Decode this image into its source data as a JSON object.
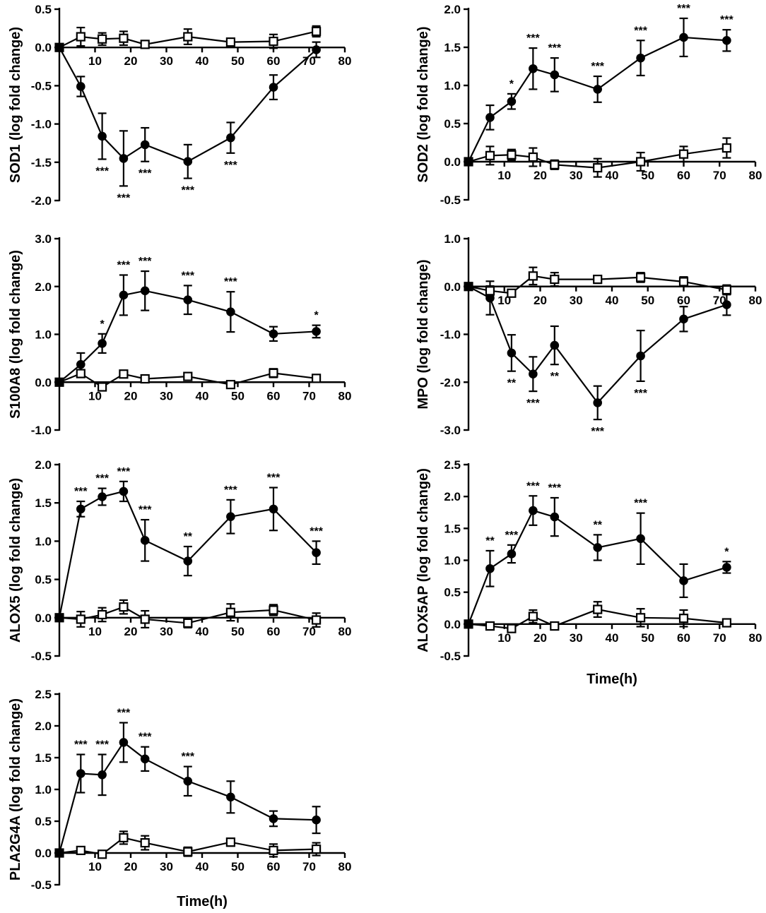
{
  "chart_data": [
    {
      "type": "line",
      "name": "SOD1",
      "ylabel": "SOD1 (log fold change)",
      "xlabel": "",
      "xlim": [
        0,
        80
      ],
      "ylim": [
        -2.0,
        0.5
      ],
      "xticks": [
        10,
        20,
        30,
        40,
        50,
        60,
        70,
        80
      ],
      "yticks": [
        0.5,
        0.0,
        -0.5,
        -1.0,
        -1.5,
        -2.0
      ],
      "ytick_labels": [
        "0.5",
        "0.0",
        "-0.5",
        "-1.0",
        "-1.5",
        "-2.0"
      ],
      "series": [
        {
          "name": "filled",
          "marker": "filled-circle",
          "x": [
            0,
            6,
            12,
            18,
            24,
            36,
            48,
            60,
            72
          ],
          "y": [
            0.0,
            -0.51,
            -1.16,
            -1.45,
            -1.27,
            -1.49,
            -1.18,
            -0.52,
            -0.03
          ],
          "err": [
            0,
            0.13,
            0.3,
            0.36,
            0.22,
            0.22,
            0.2,
            0.16,
            0.1
          ],
          "sig": [
            "",
            "",
            "***",
            "***",
            "***",
            "***",
            "***",
            "",
            ""
          ]
        },
        {
          "name": "open",
          "marker": "open-square",
          "x": [
            0,
            6,
            12,
            18,
            24,
            36,
            48,
            60,
            72
          ],
          "y": [
            0.0,
            0.14,
            0.11,
            0.12,
            0.04,
            0.14,
            0.07,
            0.08,
            0.21
          ],
          "err": [
            0,
            0.12,
            0.08,
            0.09,
            0.03,
            0.1,
            0.03,
            0.09,
            0.07
          ],
          "sig": []
        }
      ]
    },
    {
      "type": "line",
      "name": "SOD2",
      "ylabel": "SOD2 (log fold change)",
      "xlabel": "",
      "xlim": [
        0,
        80
      ],
      "ylim": [
        -0.5,
        2.0
      ],
      "xticks": [
        10,
        20,
        30,
        40,
        50,
        60,
        70,
        80
      ],
      "yticks": [
        2.0,
        1.5,
        1.0,
        0.5,
        0.0,
        -0.5
      ],
      "ytick_labels": [
        "2.0",
        "1.5",
        "1.0",
        "0.5",
        "0.0",
        "-0.5"
      ],
      "series": [
        {
          "name": "filled",
          "marker": "filled-circle",
          "x": [
            0,
            6,
            12,
            18,
            24,
            36,
            48,
            60,
            72
          ],
          "y": [
            0.0,
            0.58,
            0.79,
            1.22,
            1.14,
            0.95,
            1.36,
            1.63,
            1.59
          ],
          "err": [
            0,
            0.16,
            0.1,
            0.27,
            0.22,
            0.17,
            0.23,
            0.25,
            0.14
          ],
          "sig": [
            "",
            "",
            "*",
            "***",
            "***",
            "***",
            "***",
            "***",
            "***"
          ]
        },
        {
          "name": "open",
          "marker": "open-square",
          "x": [
            0,
            6,
            12,
            18,
            24,
            36,
            48,
            60,
            72
          ],
          "y": [
            0.0,
            0.08,
            0.09,
            0.06,
            -0.04,
            -0.08,
            0.0,
            0.1,
            0.18
          ],
          "err": [
            0,
            0.12,
            0.07,
            0.12,
            0.06,
            0.12,
            0.12,
            0.1,
            0.13
          ],
          "sig": []
        }
      ]
    },
    {
      "type": "line",
      "name": "S100A8",
      "ylabel": "S100A8 (log fold change)",
      "xlabel": "",
      "xlim": [
        0,
        80
      ],
      "ylim": [
        -1.0,
        3.0
      ],
      "xticks": [
        10,
        20,
        30,
        40,
        50,
        60,
        70,
        80
      ],
      "yticks": [
        3.0,
        2.0,
        1.0,
        0.0,
        -1.0
      ],
      "ytick_labels": [
        "3.0",
        "2.0",
        "1.0",
        "0.0",
        "-1.0"
      ],
      "series": [
        {
          "name": "filled",
          "marker": "filled-circle",
          "x": [
            0,
            6,
            12,
            18,
            24,
            36,
            48,
            60,
            72
          ],
          "y": [
            0.0,
            0.37,
            0.81,
            1.82,
            1.91,
            1.72,
            1.47,
            1.01,
            1.06
          ],
          "err": [
            0,
            0.24,
            0.2,
            0.42,
            0.41,
            0.3,
            0.42,
            0.15,
            0.13
          ],
          "sig": [
            "",
            "",
            "*",
            "***",
            "***",
            "***",
            "***",
            "",
            "*"
          ]
        },
        {
          "name": "open",
          "marker": "open-square",
          "x": [
            0,
            6,
            12,
            18,
            24,
            36,
            48,
            60,
            72
          ],
          "y": [
            0.0,
            0.18,
            -0.1,
            0.17,
            0.07,
            0.12,
            -0.05,
            0.19,
            0.08
          ],
          "err": [
            0,
            0.08,
            0.05,
            0.06,
            0.04,
            0.05,
            0.04,
            0.09,
            0.05
          ],
          "sig": []
        }
      ]
    },
    {
      "type": "line",
      "name": "MPO",
      "ylabel": "MPO (log fold change)",
      "xlabel": "",
      "xlim": [
        0,
        80
      ],
      "ylim": [
        -3.0,
        1.0
      ],
      "xticks": [
        10,
        20,
        30,
        40,
        50,
        60,
        70,
        80
      ],
      "yticks": [
        1.0,
        0.0,
        -1.0,
        -2.0,
        -3.0
      ],
      "ytick_labels": [
        "1.0",
        "0.0",
        "-1.0",
        "-2.0",
        "-3.0"
      ],
      "series": [
        {
          "name": "filled",
          "marker": "filled-circle",
          "x": [
            0,
            6,
            12,
            18,
            24,
            36,
            48,
            60,
            72
          ],
          "y": [
            0.0,
            -0.24,
            -1.39,
            -1.83,
            -1.23,
            -2.43,
            -1.45,
            -0.68,
            -0.38
          ],
          "err": [
            0,
            0.35,
            0.38,
            0.36,
            0.4,
            0.35,
            0.53,
            0.26,
            0.22
          ],
          "sig": [
            "",
            "",
            "**",
            "***",
            "**",
            "***",
            "***",
            "",
            ""
          ]
        },
        {
          "name": "open",
          "marker": "open-square",
          "x": [
            0,
            6,
            12,
            18,
            24,
            36,
            48,
            60,
            72
          ],
          "y": [
            0.0,
            -0.09,
            -0.14,
            0.22,
            0.15,
            0.15,
            0.19,
            0.1,
            -0.07
          ],
          "err": [
            0,
            0.1,
            0.06,
            0.18,
            0.14,
            0.08,
            0.1,
            0.1,
            0.1
          ],
          "sig": []
        }
      ]
    },
    {
      "type": "line",
      "name": "ALOX5",
      "ylabel": "ALOX5 (log fold change)",
      "xlabel": "",
      "xlim": [
        0,
        80
      ],
      "ylim": [
        -0.5,
        2.0
      ],
      "xticks": [
        10,
        20,
        30,
        40,
        50,
        60,
        70,
        80
      ],
      "yticks": [
        2.0,
        1.5,
        1.0,
        0.5,
        0.0,
        -0.5
      ],
      "ytick_labels": [
        "2.0",
        "1.5",
        "1.0",
        "0.5",
        "0.0",
        "-0.5"
      ],
      "series": [
        {
          "name": "filled",
          "marker": "filled-circle",
          "x": [
            0,
            6,
            12,
            18,
            24,
            36,
            48,
            60,
            72
          ],
          "y": [
            0.0,
            1.42,
            1.58,
            1.65,
            1.01,
            0.74,
            1.32,
            1.42,
            0.85
          ],
          "err": [
            0,
            0.1,
            0.11,
            0.13,
            0.27,
            0.19,
            0.22,
            0.28,
            0.15
          ],
          "sig": [
            "",
            "***",
            "***",
            "***",
            "***",
            "**",
            "***",
            "***",
            "***"
          ]
        },
        {
          "name": "open",
          "marker": "open-square",
          "x": [
            0,
            6,
            12,
            18,
            24,
            36,
            48,
            60,
            72
          ],
          "y": [
            0.0,
            -0.02,
            0.04,
            0.14,
            -0.02,
            -0.07,
            0.07,
            0.1,
            -0.03
          ],
          "err": [
            0,
            0.1,
            0.09,
            0.09,
            0.11,
            0.06,
            0.11,
            0.07,
            0.09
          ],
          "sig": []
        }
      ]
    },
    {
      "type": "line",
      "name": "ALOX5AP",
      "ylabel": "ALOX5AP (log fold change)",
      "xlabel": "Time(h)",
      "xlim": [
        0,
        80
      ],
      "ylim": [
        -0.5,
        2.5
      ],
      "xticks": [
        10,
        20,
        30,
        40,
        50,
        60,
        70,
        80
      ],
      "yticks": [
        2.5,
        2.0,
        1.5,
        1.0,
        0.5,
        0.0,
        -0.5
      ],
      "ytick_labels": [
        "2.5",
        "2.0",
        "1.5",
        "1.0",
        "0.5",
        "0.0",
        "-0.5"
      ],
      "series": [
        {
          "name": "filled",
          "marker": "filled-circle",
          "x": [
            0,
            6,
            12,
            18,
            24,
            36,
            48,
            60,
            72
          ],
          "y": [
            0.0,
            0.87,
            1.1,
            1.78,
            1.68,
            1.2,
            1.34,
            0.68,
            0.89
          ],
          "err": [
            0,
            0.28,
            0.14,
            0.23,
            0.3,
            0.2,
            0.4,
            0.26,
            0.09
          ],
          "sig": [
            "",
            "**",
            "***",
            "***",
            "***",
            "**",
            "***",
            "",
            "*"
          ]
        },
        {
          "name": "open",
          "marker": "open-square",
          "x": [
            0,
            6,
            12,
            18,
            24,
            36,
            48,
            60,
            72
          ],
          "y": [
            0.0,
            -0.03,
            -0.07,
            0.12,
            -0.03,
            0.23,
            0.1,
            0.09,
            0.02
          ],
          "err": [
            0,
            0.06,
            0.04,
            0.1,
            0.06,
            0.12,
            0.14,
            0.13,
            0.03
          ],
          "sig": []
        }
      ]
    },
    {
      "type": "line",
      "name": "PLA2G4A",
      "ylabel": "PLA2G4A (log fold change)",
      "xlabel": "Time(h)",
      "xlim": [
        0,
        80
      ],
      "ylim": [
        -0.5,
        2.5
      ],
      "xticks": [
        10,
        20,
        30,
        40,
        50,
        60,
        70,
        80
      ],
      "yticks": [
        2.5,
        2.0,
        1.5,
        1.0,
        0.5,
        0.0,
        -0.5
      ],
      "ytick_labels": [
        "2.5",
        "2.0",
        "1.5",
        "1.0",
        "0.5",
        "0.0",
        "-0.5"
      ],
      "series": [
        {
          "name": "filled",
          "marker": "filled-circle",
          "x": [
            0,
            6,
            12,
            18,
            24,
            36,
            48,
            60,
            72
          ],
          "y": [
            0.0,
            1.25,
            1.23,
            1.74,
            1.48,
            1.13,
            0.88,
            0.54,
            0.52
          ],
          "err": [
            0,
            0.3,
            0.32,
            0.31,
            0.19,
            0.23,
            0.25,
            0.12,
            0.21
          ],
          "sig": [
            "",
            "***",
            "***",
            "***",
            "***",
            "***",
            "",
            "",
            ""
          ]
        },
        {
          "name": "open",
          "marker": "open-square",
          "x": [
            0,
            6,
            12,
            18,
            24,
            36,
            48,
            60,
            72
          ],
          "y": [
            0.0,
            0.04,
            -0.02,
            0.24,
            0.16,
            0.02,
            0.17,
            0.04,
            0.06
          ],
          "err": [
            0,
            0.05,
            0.03,
            0.1,
            0.11,
            0.07,
            0.06,
            0.1,
            0.1
          ],
          "sig": []
        }
      ]
    }
  ]
}
